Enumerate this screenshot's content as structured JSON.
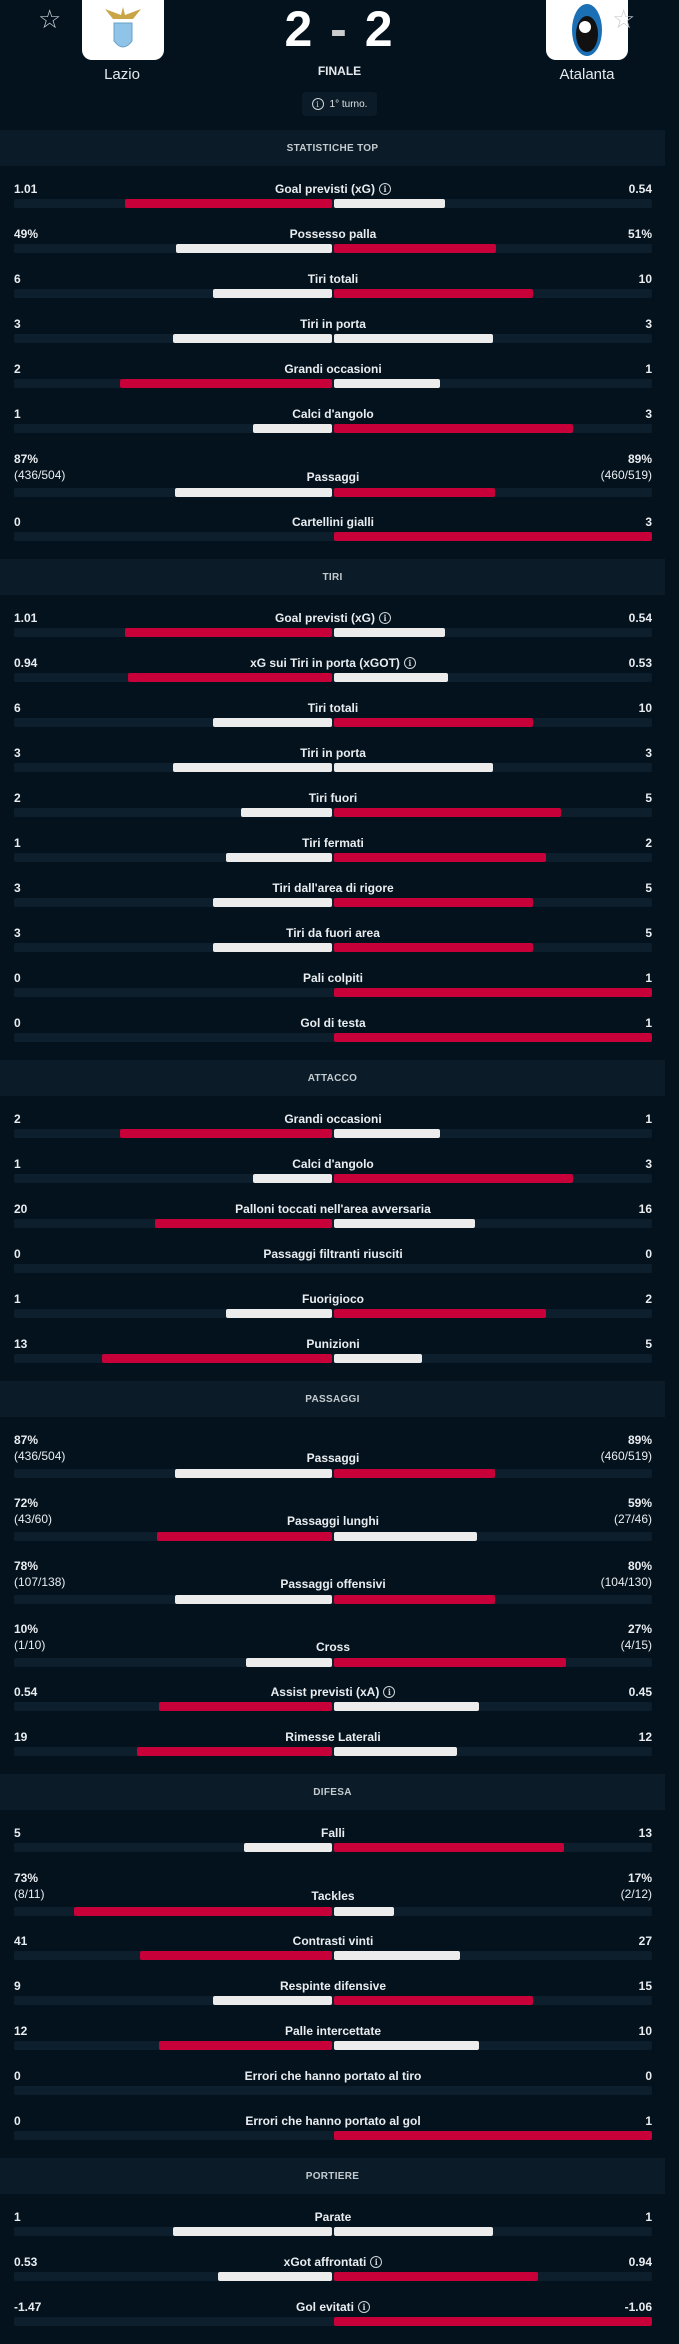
{
  "match": {
    "home": "Lazio",
    "away": "Atalanta",
    "home_score": "2",
    "away_score": "2",
    "separator": "-",
    "status": "FINALE",
    "round": "1° turno."
  },
  "colors": {
    "accent": "#c8003a",
    "bar": "#ececec",
    "background": "#04121d"
  },
  "sections": [
    {
      "title": "STATISTICHE TOP",
      "rows": [
        {
          "label": "Goal previsti (xG)",
          "info": true,
          "home": "1.01",
          "away": "0.54",
          "fill": [
            0.65,
            0.35
          ],
          "hi": "L"
        },
        {
          "label": "Possesso palla",
          "home": "49%",
          "away": "51%",
          "fill": [
            0.49,
            0.51
          ],
          "hi": "R"
        },
        {
          "label": "Tiri totali",
          "home": "6",
          "away": "10",
          "fill": [
            0.375,
            0.625
          ],
          "hi": "R"
        },
        {
          "label": "Tiri in porta",
          "home": "3",
          "away": "3",
          "fill": [
            0.5,
            0.5
          ],
          "hi": ""
        },
        {
          "label": "Grandi occasioni",
          "home": "2",
          "away": "1",
          "fill": [
            0.667,
            0.333
          ],
          "hi": "L"
        },
        {
          "label": "Calci d'angolo",
          "home": "1",
          "away": "3",
          "fill": [
            0.25,
            0.75
          ],
          "hi": "R"
        },
        {
          "label": "Passaggi",
          "home": "87%",
          "home_sub": "(436/504)",
          "away": "89%",
          "away_sub": "(460/519)",
          "fill": [
            0.494,
            0.506
          ],
          "hi": "R"
        },
        {
          "label": "Cartellini gialli",
          "home": "0",
          "away": "3",
          "fill": [
            0,
            1
          ],
          "hi": "R"
        }
      ]
    },
    {
      "title": "TIRI",
      "rows": [
        {
          "label": "Goal previsti (xG)",
          "info": true,
          "home": "1.01",
          "away": "0.54",
          "fill": [
            0.65,
            0.35
          ],
          "hi": "L"
        },
        {
          "label": "xG sui Tiri in porta (xGOT)",
          "info": true,
          "home": "0.94",
          "away": "0.53",
          "fill": [
            0.64,
            0.36
          ],
          "hi": "L"
        },
        {
          "label": "Tiri totali",
          "home": "6",
          "away": "10",
          "fill": [
            0.375,
            0.625
          ],
          "hi": "R"
        },
        {
          "label": "Tiri in porta",
          "home": "3",
          "away": "3",
          "fill": [
            0.5,
            0.5
          ],
          "hi": ""
        },
        {
          "label": "Tiri fuori",
          "home": "2",
          "away": "5",
          "fill": [
            0.286,
            0.714
          ],
          "hi": "R"
        },
        {
          "label": "Tiri fermati",
          "home": "1",
          "away": "2",
          "fill": [
            0.333,
            0.667
          ],
          "hi": "R"
        },
        {
          "label": "Tiri dall'area di rigore",
          "home": "3",
          "away": "5",
          "fill": [
            0.375,
            0.625
          ],
          "hi": "R"
        },
        {
          "label": "Tiri da fuori area",
          "home": "3",
          "away": "5",
          "fill": [
            0.375,
            0.625
          ],
          "hi": "R"
        },
        {
          "label": "Pali colpiti",
          "home": "0",
          "away": "1",
          "fill": [
            0,
            1
          ],
          "hi": "R"
        },
        {
          "label": "Gol di testa",
          "home": "0",
          "away": "1",
          "fill": [
            0,
            1
          ],
          "hi": "R"
        }
      ]
    },
    {
      "title": "ATTACCO",
      "rows": [
        {
          "label": "Grandi occasioni",
          "home": "2",
          "away": "1",
          "fill": [
            0.667,
            0.333
          ],
          "hi": "L"
        },
        {
          "label": "Calci d'angolo",
          "home": "1",
          "away": "3",
          "fill": [
            0.25,
            0.75
          ],
          "hi": "R"
        },
        {
          "label": "Palloni toccati nell'area avversaria",
          "home": "20",
          "away": "16",
          "fill": [
            0.556,
            0.444
          ],
          "hi": "L"
        },
        {
          "label": "Passaggi filtranti riusciti",
          "home": "0",
          "away": "0",
          "fill": [
            0,
            0
          ],
          "hi": ""
        },
        {
          "label": "Fuorigioco",
          "home": "1",
          "away": "2",
          "fill": [
            0.333,
            0.667
          ],
          "hi": "R"
        },
        {
          "label": "Punizioni",
          "home": "13",
          "away": "5",
          "fill": [
            0.722,
            0.278
          ],
          "hi": "L"
        }
      ]
    },
    {
      "title": "PASSAGGI",
      "rows": [
        {
          "label": "Passaggi",
          "home": "87%",
          "home_sub": "(436/504)",
          "away": "89%",
          "away_sub": "(460/519)",
          "fill": [
            0.494,
            0.506
          ],
          "hi": "R"
        },
        {
          "label": "Passaggi lunghi",
          "home": "72%",
          "home_sub": "(43/60)",
          "away": "59%",
          "away_sub": "(27/46)",
          "fill": [
            0.55,
            0.45
          ],
          "hi": "L"
        },
        {
          "label": "Passaggi offensivi",
          "home": "78%",
          "home_sub": "(107/138)",
          "away": "80%",
          "away_sub": "(104/130)",
          "fill": [
            0.494,
            0.506
          ],
          "hi": "R"
        },
        {
          "label": "Cross",
          "home": "10%",
          "home_sub": "(1/10)",
          "away": "27%",
          "away_sub": "(4/15)",
          "fill": [
            0.27,
            0.73
          ],
          "hi": "R"
        },
        {
          "label": "Assist previsti (xA)",
          "info": true,
          "home": "0.54",
          "away": "0.45",
          "fill": [
            0.545,
            0.455
          ],
          "hi": "L"
        },
        {
          "label": "Rimesse Laterali",
          "home": "19",
          "away": "12",
          "fill": [
            0.613,
            0.387
          ],
          "hi": "L"
        }
      ]
    },
    {
      "title": "DIFESA",
      "rows": [
        {
          "label": "Falli",
          "home": "5",
          "away": "13",
          "fill": [
            0.278,
            0.722
          ],
          "hi": "R"
        },
        {
          "label": "Tackles",
          "home": "73%",
          "home_sub": "(8/11)",
          "away": "17%",
          "away_sub": "(2/12)",
          "fill": [
            0.81,
            0.19
          ],
          "hi": "L"
        },
        {
          "label": "Contrasti vinti",
          "home": "41",
          "away": "27",
          "fill": [
            0.603,
            0.397
          ],
          "hi": "L"
        },
        {
          "label": "Respinte difensive",
          "home": "9",
          "away": "15",
          "fill": [
            0.375,
            0.625
          ],
          "hi": "R"
        },
        {
          "label": "Palle intercettate",
          "home": "12",
          "away": "10",
          "fill": [
            0.545,
            0.455
          ],
          "hi": "L"
        },
        {
          "label": "Errori che hanno portato al tiro",
          "home": "0",
          "away": "0",
          "fill": [
            0,
            0
          ],
          "hi": ""
        },
        {
          "label": "Errori che hanno portato al gol",
          "home": "0",
          "away": "1",
          "fill": [
            0,
            1
          ],
          "hi": "R"
        }
      ]
    },
    {
      "title": "PORTIERE",
      "rows": [
        {
          "label": "Parate",
          "home": "1",
          "away": "1",
          "fill": [
            0.5,
            0.5
          ],
          "hi": ""
        },
        {
          "label": "xGot affrontati",
          "info": true,
          "home": "0.53",
          "away": "0.94",
          "fill": [
            0.36,
            0.64
          ],
          "hi": "R"
        },
        {
          "label": "Gol evitati",
          "info": true,
          "home": "-1.47",
          "away": "-1.06",
          "fill": [
            0,
            1
          ],
          "hi": "R"
        }
      ]
    }
  ]
}
